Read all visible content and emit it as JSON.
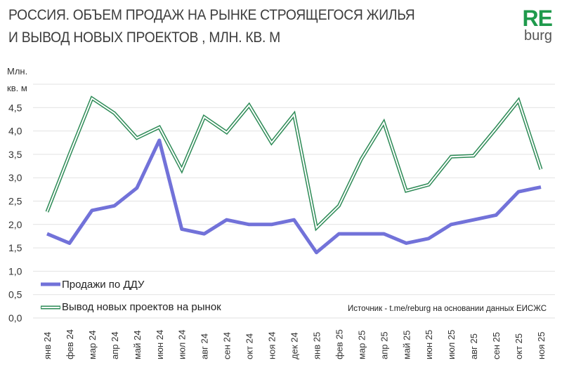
{
  "title_line1": "РОССИЯ. ОБЪЕМ ПРОДАЖ НА РЫНКЕ СТРОЯЩЕГОСЯ ЖИЛЬЯ",
  "title_line2": "И  ВЫВОД НОВЫХ ПРОЕКТОВ , МЛН. КВ. М",
  "logo": {
    "top": "RE",
    "bottom": "burg"
  },
  "source": "Источник - t.me/reburg на основании данных ЕИСЖС",
  "colors": {
    "sales": "#7272d9",
    "new_projects": "#2e8b57",
    "logo": "#1f9a4c"
  },
  "chart_data": {
    "type": "line",
    "ylabel_line1": "Млн.",
    "ylabel_line2": "кв. м",
    "ylim": [
      0,
      5
    ],
    "yticks": [
      "0,0",
      "0,5",
      "1,0",
      "1,5",
      "2,0",
      "2,5",
      "3,0",
      "3,5",
      "4,0",
      "4,5"
    ],
    "grid": true,
    "legend_position": "bottom-left",
    "categories": [
      "янв 24",
      "фев 24",
      "мар 24",
      "апр 24",
      "май 24",
      "июн 24",
      "июл 24",
      "авг 24",
      "сен 24",
      "окт 24",
      "ноя 24",
      "дек 24",
      "янв 25",
      "фев 25",
      "мар 25",
      "апр 25",
      "май 25",
      "июн 25",
      "июл 25",
      "авг 25",
      "сен 25",
      "окт 25",
      "ноя 25"
    ],
    "series": [
      {
        "name": "Продажи по ДДУ",
        "values": [
          1.8,
          1.6,
          2.3,
          2.4,
          2.78,
          3.8,
          1.9,
          1.8,
          2.1,
          2.0,
          2.0,
          2.1,
          1.4,
          1.8,
          1.8,
          1.8,
          1.6,
          1.7,
          2.0,
          2.1,
          2.2,
          2.7,
          2.8
        ]
      },
      {
        "name": "Вывод новых проектов на рынок",
        "values": [
          2.27,
          3.5,
          4.7,
          4.38,
          3.85,
          4.08,
          3.17,
          4.3,
          3.97,
          4.55,
          3.75,
          4.35,
          1.93,
          2.4,
          3.4,
          4.18,
          2.72,
          2.85,
          3.45,
          3.47,
          4.05,
          4.65,
          3.18
        ]
      }
    ]
  }
}
